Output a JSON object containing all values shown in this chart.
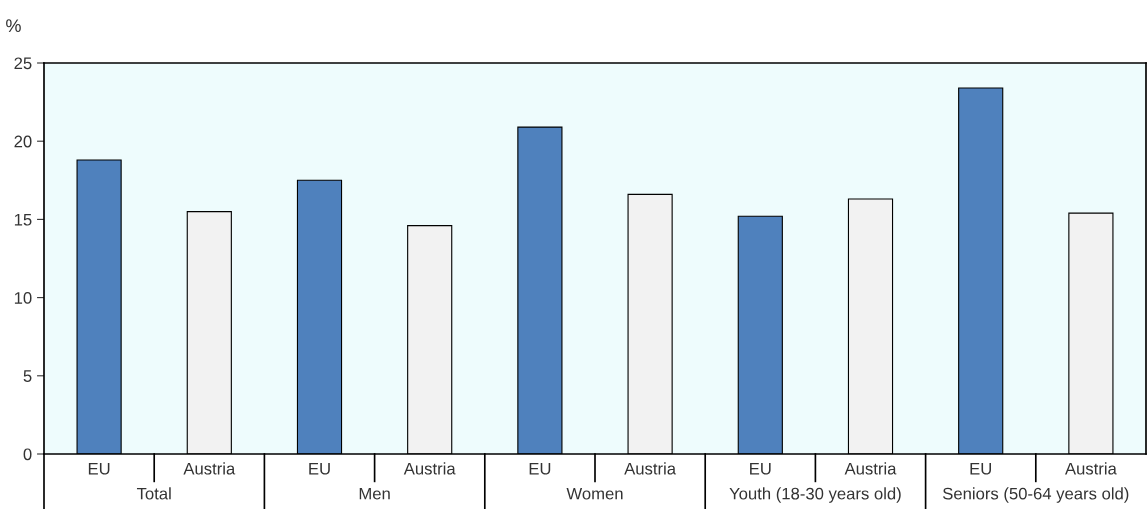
{
  "chart_data": {
    "type": "bar",
    "ylabel": "%",
    "categories": [
      "EU",
      "Austria",
      "EU",
      "Austria",
      "EU",
      "Austria",
      "EU",
      "Austria",
      "EU",
      "Austria"
    ],
    "values": [
      18.8,
      15.5,
      17.5,
      14.6,
      20.9,
      16.6,
      15.2,
      16.3,
      23.4,
      15.4
    ],
    "colors": [
      "#4f81bd",
      "#f2f2f2",
      "#4f81bd",
      "#f2f2f2",
      "#4f81bd",
      "#f2f2f2",
      "#4f81bd",
      "#f2f2f2",
      "#4f81bd",
      "#f2f2f2"
    ],
    "annotations": [
      "Total",
      "Men",
      "Women",
      "Youth (18-30 years old)",
      "Seniors (50-64 years old)"
    ],
    "ylim": [
      0,
      25
    ],
    "yticks": [
      0,
      5,
      10,
      15,
      20,
      25
    ],
    "grid": false,
    "legend": false
  }
}
